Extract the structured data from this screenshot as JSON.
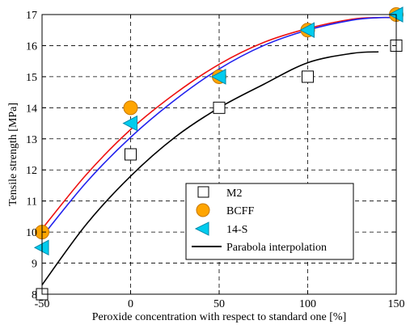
{
  "chart_data": {
    "type": "scatter",
    "title": "",
    "xlabel": "Peroxide concentration with respect to standard one [%]",
    "ylabel": "Tensile strength [MPa]",
    "xlim": [
      -50,
      150
    ],
    "ylim": [
      8,
      17
    ],
    "xticks": [
      -50,
      0,
      50,
      100,
      150
    ],
    "yticks": [
      8,
      9,
      10,
      11,
      12,
      13,
      14,
      15,
      16,
      17
    ],
    "grid": true,
    "legend_position": "lower-right",
    "x": [
      -50,
      0,
      50,
      100,
      150
    ],
    "series": [
      {
        "name": "M2",
        "marker": "square",
        "color": "#ffffff",
        "edge": "#000000",
        "values": [
          8.0,
          12.5,
          14.0,
          15.0,
          16.0
        ]
      },
      {
        "name": "BCFF",
        "marker": "circle",
        "color": "#ffa500",
        "edge": "#c87800",
        "values": [
          10.0,
          14.0,
          15.0,
          16.5,
          17.0
        ]
      },
      {
        "name": "14-S",
        "marker": "triangle-left",
        "color": "#00ccee",
        "edge": "#0088aa",
        "values": [
          9.5,
          13.5,
          15.0,
          16.5,
          17.0
        ]
      }
    ],
    "interpolation": {
      "name": "Parabola interpolation",
      "curves": [
        {
          "for": "M2",
          "color": "#000000",
          "x": [
            -50,
            -25,
            0,
            25,
            50,
            75,
            100,
            125,
            140
          ],
          "y": [
            8.3,
            10.25,
            11.8,
            13.05,
            14.0,
            14.75,
            15.45,
            15.75,
            15.8
          ]
        },
        {
          "for": "BCFF",
          "color": "#ee1111",
          "x": [
            -50,
            -25,
            0,
            25,
            50,
            75,
            100,
            125,
            140,
            150
          ],
          "y": [
            10.1,
            11.85,
            13.3,
            14.45,
            15.4,
            16.1,
            16.55,
            16.85,
            16.9,
            16.9
          ]
        },
        {
          "for": "14-S",
          "color": "#2222ee",
          "x": [
            -50,
            -25,
            0,
            25,
            50,
            75,
            100,
            125,
            140,
            150
          ],
          "y": [
            9.85,
            11.6,
            13.05,
            14.25,
            15.25,
            16.0,
            16.5,
            16.82,
            16.9,
            16.9
          ]
        }
      ]
    }
  }
}
